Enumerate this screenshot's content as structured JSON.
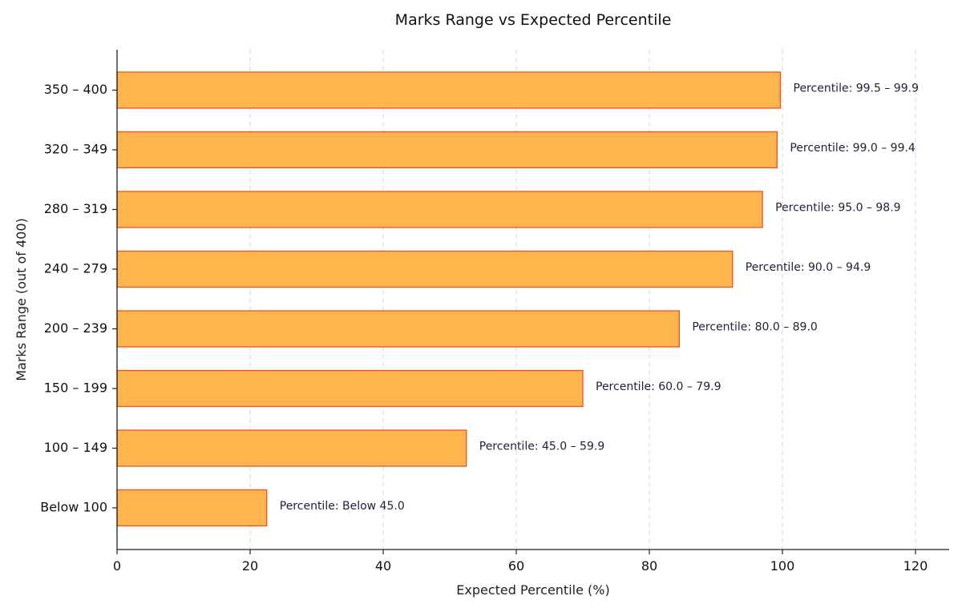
{
  "chart_data": {
    "type": "bar",
    "orientation": "horizontal",
    "title": "Marks Range vs Expected Percentile",
    "xlabel": "Expected Percentile (%)",
    "ylabel": "Marks Range (out of 400)",
    "xlim": [
      0,
      120
    ],
    "xticks": [
      "0",
      "20",
      "40",
      "60",
      "80",
      "100",
      "120"
    ],
    "grid": true,
    "categories": [
      "350 – 400",
      "320 – 349",
      "280 – 319",
      "240 – 279",
      "200 – 239",
      "150 – 199",
      "100 – 149",
      "Below 100"
    ],
    "values": [
      99.7,
      99.2,
      97.0,
      92.5,
      84.5,
      70.0,
      52.5,
      22.5
    ],
    "data_labels": [
      "Percentile: 99.5 – 99.9",
      "Percentile: 99.0 – 99.4",
      "Percentile: 95.0 – 98.9",
      "Percentile: 90.0 – 94.9",
      "Percentile: 80.0 – 89.0",
      "Percentile: 60.0 – 79.9",
      "Percentile: 45.0 – 59.9",
      "Percentile: Below 45.0"
    ],
    "colors": {
      "bar_fill": "#ffb54d",
      "bar_edge": "#f0501e"
    }
  }
}
